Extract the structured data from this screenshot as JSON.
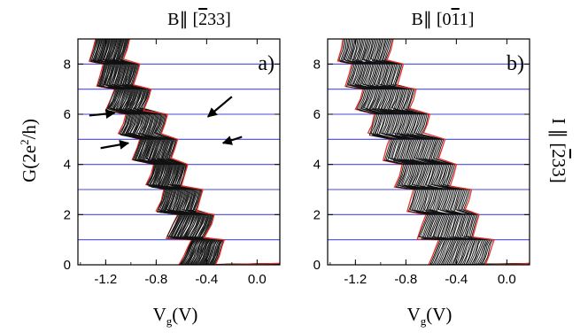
{
  "chart_data": [
    {
      "type": "line",
      "panel_label": "a)",
      "title_text": "B∥ [233]",
      "title": {
        "pre": "B∥ [",
        "bar": "2",
        "post": "33]"
      },
      "xlabel": {
        "main": "V",
        "sub": "g",
        "unit": "(V)"
      },
      "ylabel": {
        "text": "G(2e",
        "sup": "2",
        "rest": "/h)"
      },
      "xlim": [
        -1.42,
        0.18
      ],
      "ylim": [
        0,
        9
      ],
      "xticks": [
        -1.2,
        -0.8,
        -0.4,
        0.0
      ],
      "xtick_labels": [
        "-1.2",
        "-0.8",
        "-0.4",
        "0.0"
      ],
      "yticks": [
        0,
        2,
        4,
        6,
        8
      ],
      "ytick_labels": [
        "0",
        "2",
        "4",
        "6",
        "8"
      ],
      "hlines": [
        1,
        2,
        3,
        4,
        5,
        6,
        7,
        8
      ],
      "n_traces": 40,
      "first_trace_left": {
        "x": [
          -0.62,
          -0.58,
          -0.55,
          -0.52,
          -0.72,
          -0.67,
          -0.63,
          -0.8,
          -0.76,
          -0.74,
          -0.88,
          -0.84,
          -0.82,
          -0.99,
          -0.95,
          -0.93,
          -1.1,
          -1.06,
          -1.04,
          -1.2,
          -1.16,
          -1.13,
          -1.27,
          -1.24,
          -1.22,
          -1.33,
          -1.3,
          -1.28
        ],
        "y": [
          0,
          0.35,
          0.75,
          1.0,
          1.08,
          1.6,
          2.0,
          2.15,
          2.6,
          3.0,
          3.15,
          3.6,
          4.0,
          4.2,
          4.7,
          5.0,
          5.2,
          5.6,
          6.0,
          6.2,
          6.6,
          7.0,
          7.15,
          7.6,
          8.0,
          8.15,
          8.6,
          9.0
        ]
      },
      "last_trace_right": {
        "x": [
          -0.33,
          -0.3,
          -0.28,
          -0.26,
          -0.42,
          -0.36,
          -0.34,
          -0.48,
          -0.45,
          -0.43,
          -0.6,
          -0.57,
          -0.55,
          -0.68,
          -0.65,
          -0.63,
          -0.76,
          -0.73,
          -0.71,
          -0.9,
          -0.86,
          -0.84,
          -0.98,
          -0.95,
          -0.93,
          -1.06,
          -1.03,
          -1.01
        ],
        "y": [
          0,
          0.35,
          0.75,
          1.0,
          1.08,
          1.6,
          2.0,
          2.15,
          2.6,
          3.0,
          3.15,
          3.6,
          4.0,
          4.2,
          4.7,
          5.0,
          5.2,
          5.6,
          6.0,
          6.2,
          6.6,
          7.0,
          7.15,
          7.6,
          8.0,
          8.15,
          8.6,
          9.0
        ]
      },
      "arrows": [
        {
          "from": [
            -1.33,
            5.95
          ],
          "to": [
            -1.13,
            6.05
          ]
        },
        {
          "from": [
            -1.24,
            4.65
          ],
          "to": [
            -1.02,
            4.85
          ]
        },
        {
          "from": [
            -0.2,
            6.7
          ],
          "to": [
            -0.39,
            5.9
          ]
        },
        {
          "from": [
            -0.12,
            5.1
          ],
          "to": [
            -0.27,
            4.85
          ]
        }
      ],
      "colors": {
        "edge": "#e8302a",
        "trace": "#111111",
        "hline": "#4a4ad8",
        "arrow": "#000000"
      }
    },
    {
      "type": "line",
      "panel_label": "b)",
      "title_text": "B∥ [011]",
      "title": {
        "pre": "B∥ [0",
        "bar": "1",
        "post": "1]"
      },
      "xlabel": {
        "main": "V",
        "sub": "g",
        "unit": "(V)"
      },
      "xlim": [
        -1.42,
        0.18
      ],
      "ylim": [
        0,
        9
      ],
      "xticks": [
        -1.2,
        -0.8,
        -0.4,
        0.0
      ],
      "xtick_labels": [
        "-1.2",
        "-0.8",
        "-0.4",
        "0.0"
      ],
      "yticks": [
        0,
        2,
        4,
        6,
        8
      ],
      "ytick_labels": [
        "0",
        "2",
        "4",
        "6",
        "8"
      ],
      "hlines": [
        1,
        2,
        3,
        4,
        5,
        6,
        7,
        8
      ],
      "n_traces": 38,
      "first_trace_left": {
        "x": [
          -0.62,
          -0.59,
          -0.56,
          -0.54,
          -0.71,
          -0.67,
          -0.64,
          -0.79,
          -0.76,
          -0.74,
          -0.89,
          -0.85,
          -0.83,
          -0.98,
          -0.95,
          -0.93,
          -1.1,
          -1.07,
          -1.05,
          -1.2,
          -1.16,
          -1.14,
          -1.28,
          -1.25,
          -1.23,
          -1.34,
          -1.31,
          -1.3
        ],
        "y": [
          0,
          0.35,
          0.75,
          1.0,
          1.08,
          1.6,
          2.0,
          2.15,
          2.6,
          3.0,
          3.15,
          3.6,
          4.0,
          4.2,
          4.7,
          5.0,
          5.2,
          5.6,
          6.0,
          6.2,
          6.6,
          7.0,
          7.15,
          7.6,
          8.0,
          8.15,
          8.6,
          9.0
        ]
      },
      "last_trace_right": {
        "x": [
          -0.17,
          -0.14,
          -0.12,
          -0.1,
          -0.27,
          -0.24,
          -0.22,
          -0.33,
          -0.3,
          -0.28,
          -0.45,
          -0.42,
          -0.4,
          -0.54,
          -0.51,
          -0.49,
          -0.66,
          -0.63,
          -0.61,
          -0.77,
          -0.74,
          -0.72,
          -0.87,
          -0.84,
          -0.82,
          -0.95,
          -0.92,
          -0.9
        ],
        "y": [
          0,
          0.35,
          0.75,
          1.0,
          1.08,
          1.6,
          2.0,
          2.15,
          2.6,
          3.0,
          3.15,
          3.6,
          4.0,
          4.2,
          4.7,
          5.0,
          5.2,
          5.6,
          6.0,
          6.2,
          6.6,
          7.0,
          7.15,
          7.6,
          8.0,
          8.15,
          8.6,
          9.0
        ]
      },
      "arrows": [],
      "colors": {
        "edge": "#e8302a",
        "trace": "#111111",
        "hline": "#4a4ad8",
        "arrow": "#000000"
      }
    }
  ],
  "side_label": {
    "pre": "I ∥ [",
    "bar": "2",
    "post": "33]"
  }
}
